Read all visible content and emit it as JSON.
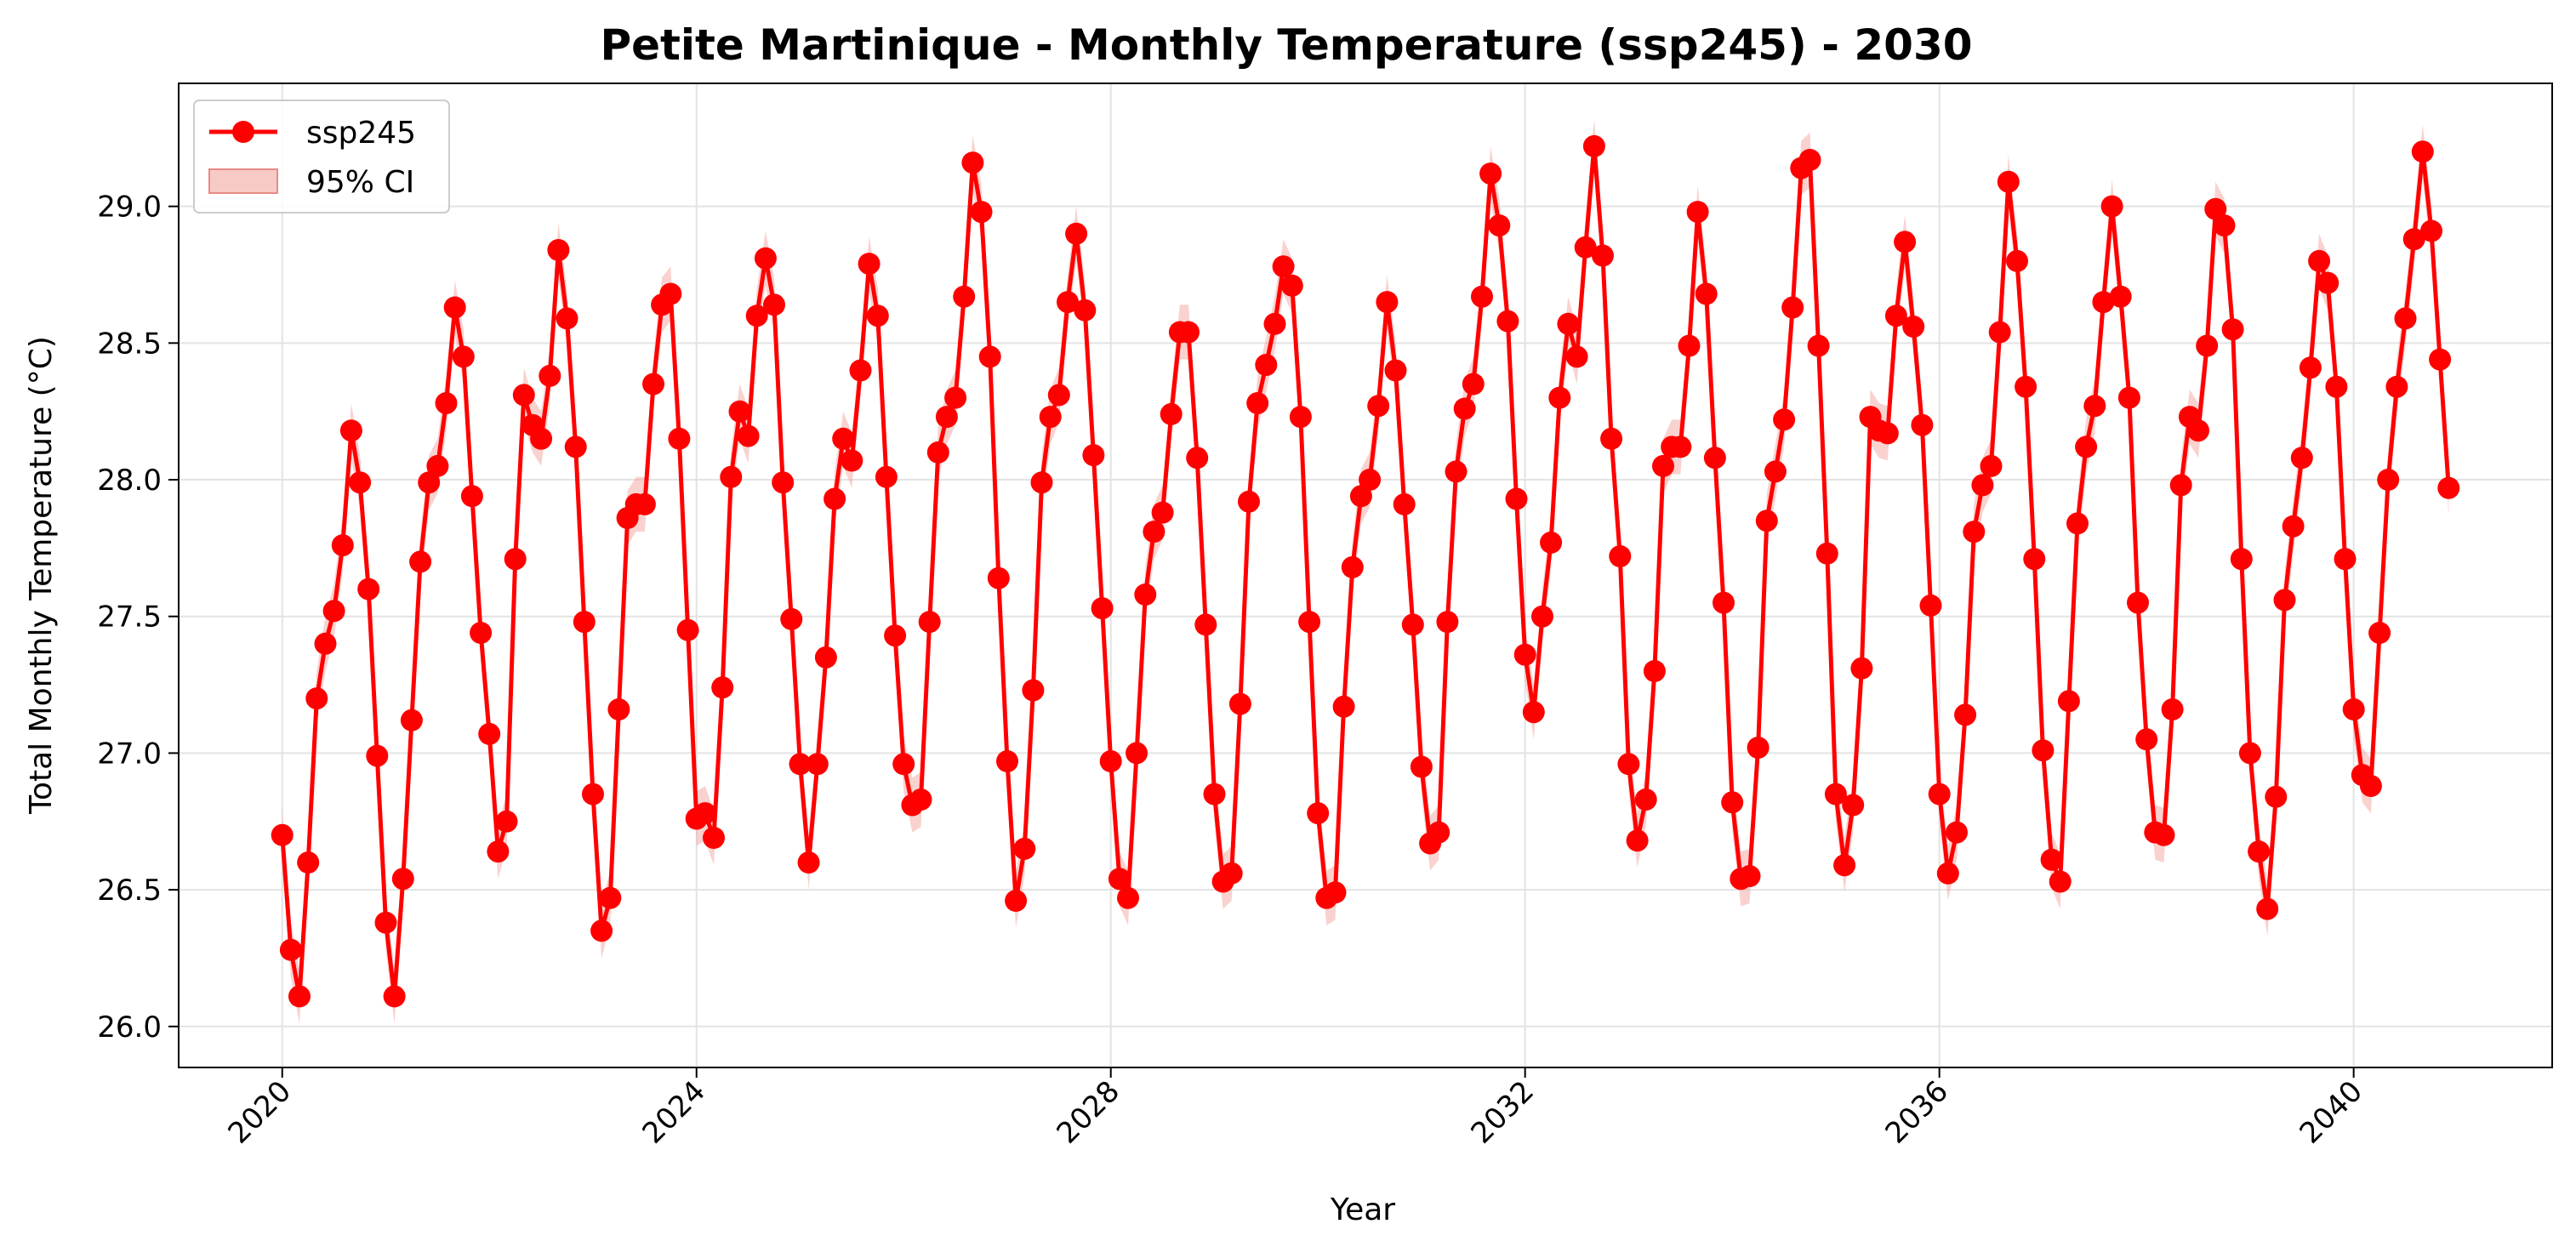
{
  "chart_data": {
    "type": "line",
    "title": "Petite Martinique - Monthly Temperature (ssp245) - 2030",
    "xlabel": "Year",
    "ylabel": "Total Monthly Temperature (°C)",
    "x_ticks": [
      "2020",
      "2024",
      "2028",
      "2032",
      "2036",
      "2040"
    ],
    "y_ticks": [
      "26.0",
      "26.5",
      "27.0",
      "27.5",
      "28.0",
      "28.5",
      "29.0"
    ],
    "xlim": [
      "2019-01",
      "2041-12"
    ],
    "ylim": [
      25.85,
      29.45
    ],
    "grid": true,
    "legend_position": "top-left",
    "colors": {
      "line": "#ff0000",
      "band": "#f4a6a0"
    },
    "start_month": "2020-01",
    "band_halfwidth": 0.1,
    "series": [
      {
        "name": "ssp245",
        "values": [
          26.7,
          26.28,
          26.11,
          26.6,
          27.2,
          27.4,
          27.52,
          27.76,
          28.18,
          27.99,
          27.6,
          26.99,
          26.38,
          26.11,
          26.54,
          27.12,
          27.7,
          27.99,
          28.05,
          28.28,
          28.63,
          28.45,
          27.94,
          27.44,
          27.07,
          26.64,
          26.75,
          27.71,
          28.31,
          28.2,
          28.15,
          28.38,
          28.84,
          28.59,
          28.12,
          27.48,
          26.85,
          26.35,
          26.47,
          27.16,
          27.86,
          27.91,
          27.91,
          28.35,
          28.64,
          28.68,
          28.15,
          27.45,
          26.76,
          26.78,
          26.69,
          27.24,
          28.01,
          28.25,
          28.16,
          28.6,
          28.81,
          28.64,
          27.99,
          27.49,
          26.96,
          26.6,
          26.96,
          27.35,
          27.93,
          28.15,
          28.07,
          28.4,
          28.79,
          28.6,
          28.01,
          27.43,
          26.96,
          26.81,
          26.83,
          27.48,
          28.1,
          28.23,
          28.3,
          28.67,
          29.16,
          28.98,
          28.45,
          27.64,
          26.97,
          26.46,
          26.65,
          27.23,
          27.99,
          28.23,
          28.31,
          28.65,
          28.9,
          28.62,
          28.09,
          27.53,
          26.97,
          26.54,
          26.47,
          27.0,
          27.58,
          27.81,
          27.88,
          28.24,
          28.54,
          28.54,
          28.08,
          27.47,
          26.85,
          26.53,
          26.56,
          27.18,
          27.92,
          28.28,
          28.42,
          28.57,
          28.78,
          28.71,
          28.23,
          27.48,
          26.78,
          26.47,
          26.49,
          27.17,
          27.68,
          27.94,
          28.0,
          28.27,
          28.65,
          28.4,
          27.91,
          27.47,
          26.95,
          26.67,
          26.71,
          27.48,
          28.03,
          28.26,
          28.35,
          28.67,
          29.12,
          28.93,
          28.58,
          27.93,
          27.36,
          27.15,
          27.5,
          27.77,
          28.3,
          28.57,
          28.45,
          28.85,
          29.22,
          28.82,
          28.15,
          27.72,
          26.96,
          26.68,
          26.83,
          27.3,
          28.05,
          28.12,
          28.12,
          28.49,
          28.98,
          28.68,
          28.08,
          27.55,
          26.82,
          26.54,
          26.55,
          27.02,
          27.85,
          28.03,
          28.22,
          28.63,
          29.14,
          29.17,
          28.49,
          27.73,
          26.85,
          26.59,
          26.81,
          27.31,
          28.23,
          28.18,
          28.17,
          28.6,
          28.87,
          28.56,
          28.2,
          27.54,
          26.85,
          26.56,
          26.71,
          27.14,
          27.81,
          27.98,
          28.05,
          28.54,
          29.09,
          28.8,
          28.34,
          27.71,
          27.01,
          26.61,
          26.53,
          27.19,
          27.84,
          28.12,
          28.27,
          28.65,
          29.0,
          28.67,
          28.3,
          27.55,
          27.05,
          26.71,
          26.7,
          27.16,
          27.98,
          28.23,
          28.18,
          28.49,
          28.99,
          28.93,
          28.55,
          27.71,
          27.0,
          26.64,
          26.43,
          26.84,
          27.56,
          27.83,
          28.08,
          28.41,
          28.8,
          28.72,
          28.34,
          27.71,
          27.16,
          26.92,
          26.88,
          27.44,
          28.0,
          28.34,
          28.59,
          28.88,
          29.2,
          28.91,
          28.44,
          27.97
        ]
      },
      {
        "name": "95% CI"
      }
    ]
  }
}
